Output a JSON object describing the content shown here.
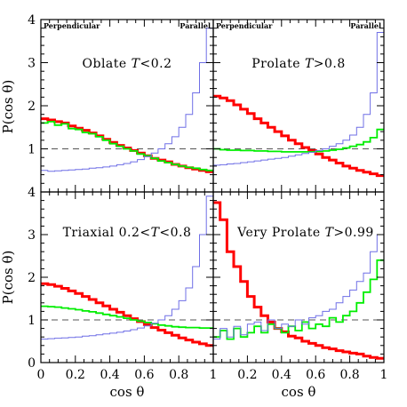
{
  "chart_data": {
    "type": "line",
    "layout": "2x2 panels, shared axes",
    "xlabel": "cos θ",
    "ylabel": "P(cos θ)",
    "xlim": [
      0,
      1
    ],
    "ylim": [
      0,
      4
    ],
    "x_ticks": [
      "0",
      "0.2",
      "0.4",
      "0.6",
      "0.8",
      "1"
    ],
    "y_ticks": [
      "0",
      "1",
      "2",
      "3",
      "4"
    ],
    "corner_left": "Perpendicular",
    "corner_right": "Parallel",
    "reference_y": 1,
    "colors": {
      "red": "#ff0000",
      "green": "#00ee00",
      "blue": "#6f6fe6",
      "ref": "#555555"
    },
    "panels": [
      {
        "title_prefix": "Oblate ",
        "title_var": "T",
        "title_suffix": "<0.2",
        "series": [
          {
            "color": "red",
            "style": "thick",
            "x": [
              0.02,
              0.06,
              0.1,
              0.14,
              0.18,
              0.22,
              0.26,
              0.3,
              0.34,
              0.38,
              0.42,
              0.46,
              0.5,
              0.54,
              0.58,
              0.62,
              0.66,
              0.7,
              0.74,
              0.78,
              0.82,
              0.86,
              0.9,
              0.94,
              0.98
            ],
            "y": [
              1.7,
              1.67,
              1.63,
              1.6,
              1.53,
              1.48,
              1.43,
              1.37,
              1.3,
              1.22,
              1.15,
              1.08,
              1.02,
              0.96,
              0.9,
              0.84,
              0.78,
              0.74,
              0.7,
              0.64,
              0.6,
              0.56,
              0.53,
              0.5,
              0.47
            ]
          },
          {
            "color": "green",
            "style": "thin",
            "x": [
              0.02,
              0.06,
              0.1,
              0.14,
              0.18,
              0.22,
              0.26,
              0.3,
              0.34,
              0.38,
              0.42,
              0.46,
              0.5,
              0.54,
              0.58,
              0.62,
              0.66,
              0.7,
              0.74,
              0.78,
              0.82,
              0.86,
              0.9,
              0.94,
              0.98
            ],
            "y": [
              1.6,
              1.63,
              1.55,
              1.58,
              1.47,
              1.45,
              1.38,
              1.35,
              1.28,
              1.2,
              1.12,
              1.06,
              1.0,
              0.95,
              0.88,
              0.84,
              0.78,
              0.72,
              0.68,
              0.64,
              0.6,
              0.57,
              0.55,
              0.52,
              0.5
            ]
          },
          {
            "color": "blue",
            "style": "thin",
            "x": [
              0.02,
              0.06,
              0.1,
              0.14,
              0.18,
              0.22,
              0.26,
              0.3,
              0.34,
              0.38,
              0.42,
              0.46,
              0.5,
              0.54,
              0.58,
              0.62,
              0.66,
              0.7,
              0.74,
              0.78,
              0.82,
              0.86,
              0.9,
              0.94,
              0.98
            ],
            "y": [
              0.5,
              0.48,
              0.49,
              0.5,
              0.51,
              0.52,
              0.53,
              0.55,
              0.56,
              0.58,
              0.6,
              0.63,
              0.66,
              0.7,
              0.75,
              0.82,
              0.9,
              1.0,
              1.12,
              1.28,
              1.5,
              1.8,
              2.3,
              3.0,
              3.8
            ]
          }
        ]
      },
      {
        "title_prefix": "Prolate ",
        "title_var": "T",
        "title_suffix": ">0.8",
        "series": [
          {
            "color": "red",
            "style": "thick",
            "x": [
              0.02,
              0.06,
              0.1,
              0.14,
              0.18,
              0.22,
              0.26,
              0.3,
              0.34,
              0.38,
              0.42,
              0.46,
              0.5,
              0.54,
              0.58,
              0.62,
              0.66,
              0.7,
              0.74,
              0.78,
              0.82,
              0.86,
              0.9,
              0.94,
              0.98
            ],
            "y": [
              2.22,
              2.18,
              2.12,
              2.02,
              1.92,
              1.82,
              1.7,
              1.6,
              1.5,
              1.4,
              1.3,
              1.2,
              1.12,
              1.03,
              0.96,
              0.88,
              0.8,
              0.74,
              0.67,
              0.6,
              0.55,
              0.5,
              0.46,
              0.42,
              0.38
            ]
          },
          {
            "color": "green",
            "style": "thin",
            "x": [
              0.02,
              0.06,
              0.1,
              0.14,
              0.18,
              0.22,
              0.26,
              0.3,
              0.34,
              0.38,
              0.42,
              0.46,
              0.5,
              0.54,
              0.58,
              0.62,
              0.66,
              0.7,
              0.74,
              0.78,
              0.82,
              0.86,
              0.9,
              0.94,
              0.98
            ],
            "y": [
              1.0,
              0.98,
              0.97,
              0.97,
              0.96,
              0.96,
              0.95,
              0.95,
              0.94,
              0.94,
              0.93,
              0.93,
              0.93,
              0.93,
              0.93,
              0.94,
              0.95,
              0.97,
              0.99,
              1.02,
              1.06,
              1.1,
              1.16,
              1.26,
              1.45
            ]
          },
          {
            "color": "blue",
            "style": "thin",
            "x": [
              0.02,
              0.06,
              0.1,
              0.14,
              0.18,
              0.22,
              0.26,
              0.3,
              0.34,
              0.38,
              0.42,
              0.46,
              0.5,
              0.54,
              0.58,
              0.62,
              0.66,
              0.7,
              0.74,
              0.78,
              0.82,
              0.86,
              0.9,
              0.94,
              0.98
            ],
            "y": [
              0.62,
              0.63,
              0.65,
              0.66,
              0.68,
              0.7,
              0.72,
              0.74,
              0.76,
              0.78,
              0.8,
              0.83,
              0.86,
              0.89,
              0.92,
              0.96,
              1.0,
              1.06,
              1.12,
              1.2,
              1.32,
              1.5,
              1.8,
              2.3,
              3.7
            ]
          }
        ]
      },
      {
        "title_prefix": "Triaxial 0.2<",
        "title_var": "T",
        "title_suffix": "<0.8",
        "series": [
          {
            "color": "red",
            "style": "thick",
            "x": [
              0.02,
              0.06,
              0.1,
              0.14,
              0.18,
              0.22,
              0.26,
              0.3,
              0.34,
              0.38,
              0.42,
              0.46,
              0.5,
              0.54,
              0.58,
              0.62,
              0.66,
              0.7,
              0.74,
              0.78,
              0.82,
              0.86,
              0.9,
              0.94,
              0.98
            ],
            "y": [
              1.85,
              1.83,
              1.79,
              1.74,
              1.68,
              1.62,
              1.55,
              1.48,
              1.4,
              1.33,
              1.25,
              1.18,
              1.1,
              1.03,
              0.96,
              0.89,
              0.82,
              0.76,
              0.7,
              0.64,
              0.58,
              0.53,
              0.48,
              0.44,
              0.4
            ]
          },
          {
            "color": "green",
            "style": "thin",
            "x": [
              0.02,
              0.06,
              0.1,
              0.14,
              0.18,
              0.22,
              0.26,
              0.3,
              0.34,
              0.38,
              0.42,
              0.46,
              0.5,
              0.54,
              0.58,
              0.62,
              0.66,
              0.7,
              0.74,
              0.78,
              0.82,
              0.86,
              0.9,
              0.94,
              0.98
            ],
            "y": [
              1.32,
              1.31,
              1.3,
              1.28,
              1.26,
              1.24,
              1.21,
              1.19,
              1.16,
              1.13,
              1.1,
              1.07,
              1.04,
              1.0,
              0.97,
              0.94,
              0.91,
              0.88,
              0.86,
              0.84,
              0.83,
              0.82,
              0.82,
              0.81,
              0.81
            ]
          },
          {
            "color": "blue",
            "style": "thin",
            "x": [
              0.02,
              0.06,
              0.1,
              0.14,
              0.18,
              0.22,
              0.26,
              0.3,
              0.34,
              0.38,
              0.42,
              0.46,
              0.5,
              0.54,
              0.58,
              0.62,
              0.66,
              0.7,
              0.74,
              0.78,
              0.82,
              0.86,
              0.9,
              0.94,
              0.98
            ],
            "y": [
              0.55,
              0.56,
              0.57,
              0.58,
              0.59,
              0.6,
              0.62,
              0.63,
              0.65,
              0.67,
              0.69,
              0.71,
              0.74,
              0.77,
              0.81,
              0.86,
              0.92,
              1.0,
              1.1,
              1.25,
              1.45,
              1.75,
              2.25,
              3.0,
              3.9
            ]
          }
        ]
      },
      {
        "title_prefix": "Very Prolate ",
        "title_var": "T",
        "title_suffix": ">0.99",
        "series": [
          {
            "color": "red",
            "style": "thick",
            "x": [
              0.02,
              0.06,
              0.1,
              0.14,
              0.18,
              0.22,
              0.26,
              0.3,
              0.34,
              0.38,
              0.42,
              0.46,
              0.5,
              0.54,
              0.58,
              0.62,
              0.66,
              0.7,
              0.74,
              0.78,
              0.82,
              0.86,
              0.9,
              0.94,
              0.98
            ],
            "y": [
              3.75,
              3.35,
              2.6,
              2.25,
              1.9,
              1.55,
              1.3,
              1.1,
              0.95,
              0.8,
              0.72,
              0.62,
              0.58,
              0.5,
              0.45,
              0.4,
              0.35,
              0.32,
              0.28,
              0.25,
              0.22,
              0.2,
              0.15,
              0.12,
              0.1
            ]
          },
          {
            "color": "green",
            "style": "thin",
            "x": [
              0.02,
              0.06,
              0.1,
              0.14,
              0.18,
              0.22,
              0.26,
              0.3,
              0.34,
              0.38,
              0.42,
              0.46,
              0.5,
              0.54,
              0.58,
              0.62,
              0.66,
              0.7,
              0.74,
              0.78,
              0.82,
              0.86,
              0.9,
              0.94,
              0.98
            ],
            "y": [
              0.6,
              0.75,
              0.55,
              0.8,
              0.6,
              0.7,
              0.85,
              0.7,
              0.9,
              0.8,
              0.7,
              0.85,
              0.75,
              0.95,
              0.8,
              0.9,
              0.85,
              1.05,
              0.95,
              1.1,
              1.2,
              1.4,
              1.65,
              1.95,
              2.4
            ]
          },
          {
            "color": "blue",
            "style": "thin",
            "x": [
              0.02,
              0.06,
              0.1,
              0.14,
              0.18,
              0.22,
              0.26,
              0.3,
              0.34,
              0.38,
              0.42,
              0.46,
              0.5,
              0.54,
              0.58,
              0.62,
              0.66,
              0.7,
              0.74,
              0.78,
              0.82,
              0.86,
              0.9,
              0.94,
              0.98
            ],
            "y": [
              0.55,
              0.8,
              0.6,
              0.85,
              0.65,
              0.9,
              0.95,
              0.75,
              1.0,
              0.8,
              0.9,
              0.85,
              1.0,
              0.9,
              1.05,
              1.1,
              1.2,
              1.25,
              1.4,
              1.55,
              1.7,
              1.9,
              2.1,
              2.6,
              3.0
            ]
          }
        ]
      }
    ]
  }
}
